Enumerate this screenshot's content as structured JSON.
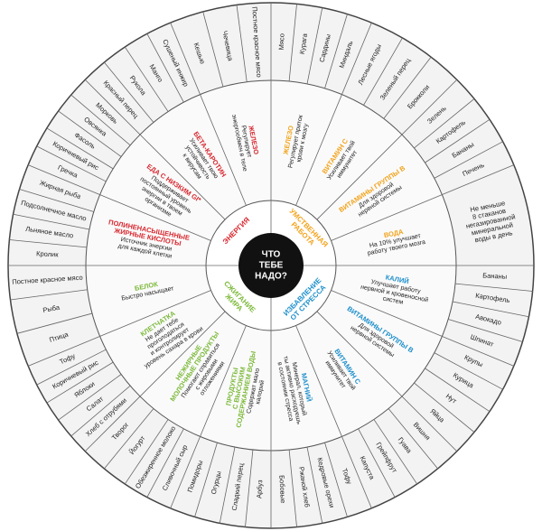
{
  "center": [
    "ЧТО",
    "ТЕБЕ",
    "НАДО?"
  ],
  "quadrants": [
    {
      "title": [
        "УМСТВЕННАЯ",
        "РАБОТА"
      ],
      "color": "#f2a31b",
      "nutrients": [
        {
          "name": [
            "ЖЕЛЕЗО"
          ],
          "desc": [
            "Регулирует приток",
            "крови к мозгу"
          ],
          "foods": [
            "Мясо",
            "Курага",
            "Сардины",
            "Миндаль"
          ]
        },
        {
          "name": [
            "ВИТАМИН С"
          ],
          "desc": [
            "Усиливает твой",
            "иммунитет"
          ],
          "foods": [
            "Лесные ягоды",
            "Зеленый перец",
            "Брокколи"
          ]
        },
        {
          "name": [
            "ВИТАМИНЫ ГРУППЫ В"
          ],
          "desc": [
            "Для здоровой",
            "нервной системы"
          ],
          "foods": [
            "Зелень",
            "Картофель",
            "Бананы",
            "Печень"
          ]
        },
        {
          "name": [
            "ВОДА"
          ],
          "desc": [
            "На 10% улучшает",
            "работу твоего мозга"
          ],
          "note": [
            "Не меньше",
            "8 стаканов",
            "негазированной",
            "минеральной",
            "воды в день"
          ]
        }
      ]
    },
    {
      "title": [
        "ИЗБАВЛЕНИЕ",
        "ОТ СТРЕССА"
      ],
      "color": "#1d8fcb",
      "nutrients": [
        {
          "name": [
            "КАЛИЙ"
          ],
          "desc": [
            "Улучшает работу",
            "нервной и кровеносной",
            "систем"
          ],
          "foods": [
            "Бананы",
            "Картофель",
            "Авокадо",
            "Шпинат"
          ]
        },
        {
          "name": [
            "ВИТАМИНЫ ГРУППЫ В"
          ],
          "desc": [
            "Для здоровой",
            "нервной системы"
          ],
          "foods": [
            "Крупы",
            "Курица",
            "Нут",
            "Яйца"
          ]
        },
        {
          "name": [
            "ВИТАМИН С"
          ],
          "desc": [
            "Усиливает твой",
            "иммунитет"
          ],
          "foods": [
            "Вишня",
            "Гуава",
            "Грейпфрут",
            "Капуста"
          ]
        },
        {
          "name": [
            "МАГНИЙ"
          ],
          "desc": [
            "Минерал, который",
            "ты активно расходуешь",
            "в состоянии стресса"
          ],
          "foods": [
            "Тофу",
            "Кедровые орехи",
            "Ржаной хлеб",
            "Бобовые"
          ]
        }
      ]
    },
    {
      "title": [
        "СЖИГАНИЕ",
        "ЖИРА"
      ],
      "color": "#7cb93a",
      "nutrients": [
        {
          "name": [
            "ПРОДУКТЫ",
            "С ВЫСОКИМ",
            "СОДЕРЖАНИЕМ ВОДЫ"
          ],
          "desc": [
            "Содержат мало",
            "калорий"
          ],
          "foods": [
            "Арбуз",
            "Сладкий перец",
            "Огурцы",
            "Помидоры"
          ]
        },
        {
          "name": [
            "НЕЖИРНЫЕ",
            "МОЛОЧНЫЕ ПРОДУКТЫ"
          ],
          "desc": [
            "Помогают справиться",
            "с жировыми",
            "отложениями"
          ],
          "foods": [
            "Сливочный сыр",
            "Обезжиренное молоко",
            "Йогурт",
            "Творог"
          ]
        },
        {
          "name": [
            "КЛЕТЧАТКА"
          ],
          "desc": [
            "Не дает тебе",
            "проголодаться",
            "и контролирует",
            "уровень сахара в крови"
          ],
          "foods": [
            "Хлеб с отрубями",
            "Салат",
            "Яблоки",
            "Коричневый рис",
            "Тофу"
          ]
        },
        {
          "name": [
            "БЕЛОК"
          ],
          "desc": [
            "Быстро насыщает"
          ],
          "foods": [
            "Птица",
            "Рыба",
            "Постное красное мясо"
          ]
        }
      ]
    },
    {
      "title": [
        "ЭНЕРГИЯ"
      ],
      "color": "#d7282f",
      "nutrients": [
        {
          "name": [
            "ПОЛИНЕНАСЫЩЕННЫЕ",
            "ЖИРНЫЕ КИСЛОТЫ"
          ],
          "desc": [
            "Источник энергии",
            "для каждой клетки"
          ],
          "foods": [
            "Кролик",
            "Льняное масло",
            "Подсолнечное масло",
            "Жирная рыба"
          ]
        },
        {
          "name": [
            "ЕДА С НИЗКИМ GI*"
          ],
          "desc": [
            "Поддерживает",
            "постоянный уровень",
            "энергии в твоем",
            "организме"
          ],
          "foods": [
            "Гречка",
            "Коричневый рис",
            "Фасоль",
            "Овсянка",
            "Морковь"
          ]
        },
        {
          "name": [
            "БЕТА-КАРОТИН"
          ],
          "desc": [
            "Усиливает твою",
            "устойчивость",
            "к вирусам"
          ],
          "foods": [
            "Красный перец",
            "Рукола",
            "Манго",
            "Сушеный инжир"
          ]
        },
        {
          "name": [
            "ЖЕЛЕЗО"
          ],
          "desc": [
            "Регулирует",
            "энергообмен в теле"
          ],
          "foods": [
            "Кешью",
            "Чечевица",
            "Постное красное мясо"
          ]
        }
      ]
    }
  ]
}
